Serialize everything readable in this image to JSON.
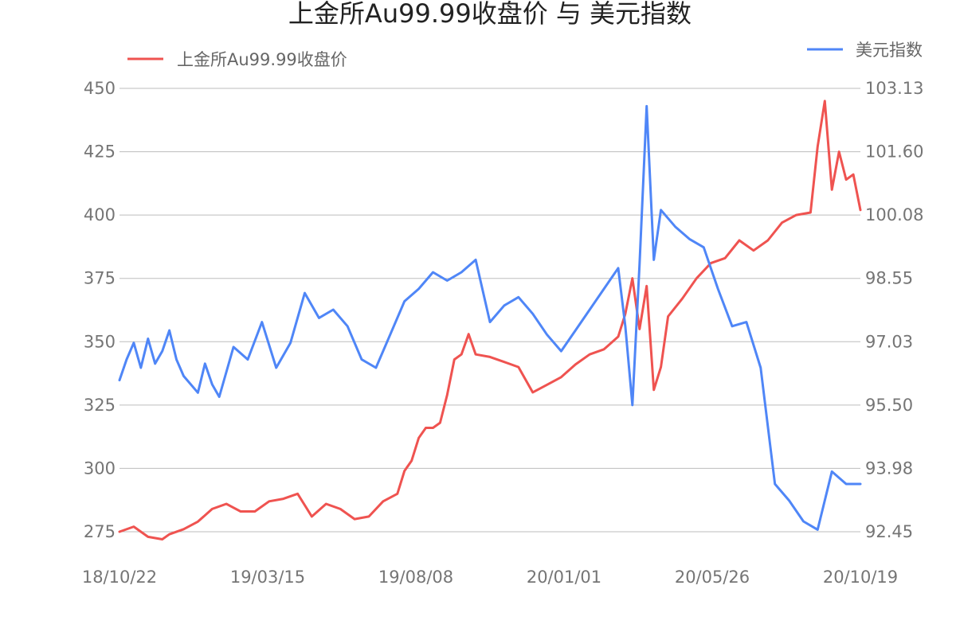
{
  "chart_data": {
    "type": "line",
    "title": "上金所Au99.99收盘价 与 美元指数",
    "legend_placement": "top",
    "grid": true,
    "x_tick_labels": [
      "18/10/22",
      "19/03/15",
      "19/08/08",
      "20/01/01",
      "20/05/26",
      "20/10/19"
    ],
    "x_range": [
      "2018-10-22",
      "2020-10-19"
    ],
    "y_left": {
      "range": [
        275,
        450
      ],
      "ticks": [
        "275",
        "300",
        "325",
        "350",
        "375",
        "400",
        "425",
        "450"
      ]
    },
    "y_right": {
      "range": [
        92.45,
        103.13
      ],
      "ticks": [
        "92.45",
        "93.98",
        "95.50",
        "97.03",
        "98.55",
        "100.08",
        "101.60",
        "103.13"
      ]
    },
    "series": [
      {
        "name": "上金所Au99.99收盘价",
        "axis": "left",
        "color": "#ef5350",
        "points": [
          [
            "2018-10-22",
            275
          ],
          [
            "2018-11-05",
            277
          ],
          [
            "2018-11-19",
            273
          ],
          [
            "2018-12-03",
            272
          ],
          [
            "2018-12-10",
            274
          ],
          [
            "2018-12-24",
            276
          ],
          [
            "2019-01-07",
            279
          ],
          [
            "2019-01-21",
            284
          ],
          [
            "2019-02-04",
            286
          ],
          [
            "2019-02-18",
            283
          ],
          [
            "2019-03-04",
            283
          ],
          [
            "2019-03-18",
            287
          ],
          [
            "2019-04-01",
            288
          ],
          [
            "2019-04-15",
            290
          ],
          [
            "2019-04-29",
            281
          ],
          [
            "2019-05-13",
            286
          ],
          [
            "2019-05-27",
            284
          ],
          [
            "2019-06-10",
            280
          ],
          [
            "2019-06-24",
            281
          ],
          [
            "2019-07-08",
            287
          ],
          [
            "2019-07-22",
            290
          ],
          [
            "2019-07-29",
            299
          ],
          [
            "2019-08-05",
            303
          ],
          [
            "2019-08-12",
            312
          ],
          [
            "2019-08-19",
            316
          ],
          [
            "2019-08-26",
            316
          ],
          [
            "2019-09-02",
            318
          ],
          [
            "2019-09-09",
            329
          ],
          [
            "2019-09-16",
            343
          ],
          [
            "2019-09-23",
            345
          ],
          [
            "2019-09-30",
            353
          ],
          [
            "2019-10-07",
            345
          ],
          [
            "2019-10-21",
            344
          ],
          [
            "2019-11-04",
            342
          ],
          [
            "2019-11-18",
            340
          ],
          [
            "2019-12-02",
            330
          ],
          [
            "2019-12-16",
            333
          ],
          [
            "2019-12-30",
            336
          ],
          [
            "2020-01-13",
            341
          ],
          [
            "2020-01-27",
            345
          ],
          [
            "2020-02-10",
            347
          ],
          [
            "2020-02-24",
            352
          ],
          [
            "2020-03-02",
            361
          ],
          [
            "2020-03-09",
            375
          ],
          [
            "2020-03-16",
            355
          ],
          [
            "2020-03-23",
            372
          ],
          [
            "2020-03-30",
            331
          ],
          [
            "2020-04-06",
            340
          ],
          [
            "2020-04-13",
            360
          ],
          [
            "2020-04-27",
            367
          ],
          [
            "2020-05-11",
            375
          ],
          [
            "2020-05-25",
            381
          ],
          [
            "2020-06-08",
            383
          ],
          [
            "2020-06-22",
            390
          ],
          [
            "2020-07-06",
            386
          ],
          [
            "2020-07-20",
            390
          ],
          [
            "2020-08-03",
            397
          ],
          [
            "2020-08-17",
            400
          ],
          [
            "2020-08-31",
            401
          ],
          [
            "2020-09-07",
            427
          ],
          [
            "2020-09-14",
            445
          ],
          [
            "2020-09-21",
            410
          ],
          [
            "2020-09-28",
            425
          ],
          [
            "2020-10-05",
            414
          ],
          [
            "2020-10-12",
            416
          ],
          [
            "2020-10-19",
            402
          ]
        ]
      },
      {
        "name": "美元指数",
        "axis": "right",
        "color": "#4f86f7",
        "points": [
          [
            "2018-10-22",
            96.1
          ],
          [
            "2018-10-29",
            96.6
          ],
          [
            "2018-11-05",
            97.0
          ],
          [
            "2018-11-12",
            96.4
          ],
          [
            "2018-11-19",
            97.1
          ],
          [
            "2018-11-26",
            96.5
          ],
          [
            "2018-12-03",
            96.8
          ],
          [
            "2018-12-10",
            97.3
          ],
          [
            "2018-12-17",
            96.6
          ],
          [
            "2018-12-24",
            96.2
          ],
          [
            "2019-01-07",
            95.8
          ],
          [
            "2019-01-14",
            96.5
          ],
          [
            "2019-01-21",
            96.0
          ],
          [
            "2019-01-28",
            95.7
          ],
          [
            "2019-02-11",
            96.9
          ],
          [
            "2019-02-25",
            96.6
          ],
          [
            "2019-03-11",
            97.5
          ],
          [
            "2019-03-25",
            96.4
          ],
          [
            "2019-04-08",
            97.0
          ],
          [
            "2019-04-22",
            98.2
          ],
          [
            "2019-05-06",
            97.6
          ],
          [
            "2019-05-20",
            97.8
          ],
          [
            "2019-06-03",
            97.4
          ],
          [
            "2019-06-17",
            96.6
          ],
          [
            "2019-07-01",
            96.4
          ],
          [
            "2019-07-15",
            97.2
          ],
          [
            "2019-07-29",
            98.0
          ],
          [
            "2019-08-12",
            98.3
          ],
          [
            "2019-08-26",
            98.7
          ],
          [
            "2019-09-09",
            98.5
          ],
          [
            "2019-09-23",
            98.7
          ],
          [
            "2019-10-07",
            99.0
          ],
          [
            "2019-10-21",
            97.5
          ],
          [
            "2019-11-04",
            97.9
          ],
          [
            "2019-11-18",
            98.1
          ],
          [
            "2019-12-02",
            97.7
          ],
          [
            "2019-12-16",
            97.2
          ],
          [
            "2019-12-30",
            96.8
          ],
          [
            "2020-01-13",
            97.3
          ],
          [
            "2020-01-27",
            97.8
          ],
          [
            "2020-02-10",
            98.3
          ],
          [
            "2020-02-24",
            98.8
          ],
          [
            "2020-03-02",
            97.4
          ],
          [
            "2020-03-09",
            95.5
          ],
          [
            "2020-03-16",
            98.9
          ],
          [
            "2020-03-23",
            102.7
          ],
          [
            "2020-03-30",
            99.0
          ],
          [
            "2020-04-06",
            100.2
          ],
          [
            "2020-04-20",
            99.8
          ],
          [
            "2020-05-04",
            99.5
          ],
          [
            "2020-05-18",
            99.3
          ],
          [
            "2020-06-01",
            98.3
          ],
          [
            "2020-06-15",
            97.4
          ],
          [
            "2020-06-29",
            97.5
          ],
          [
            "2020-07-13",
            96.4
          ],
          [
            "2020-07-27",
            93.6
          ],
          [
            "2020-08-10",
            93.2
          ],
          [
            "2020-08-24",
            92.7
          ],
          [
            "2020-09-07",
            92.5
          ],
          [
            "2020-09-21",
            93.9
          ],
          [
            "2020-10-05",
            93.6
          ],
          [
            "2020-10-19",
            93.6
          ]
        ]
      }
    ]
  }
}
